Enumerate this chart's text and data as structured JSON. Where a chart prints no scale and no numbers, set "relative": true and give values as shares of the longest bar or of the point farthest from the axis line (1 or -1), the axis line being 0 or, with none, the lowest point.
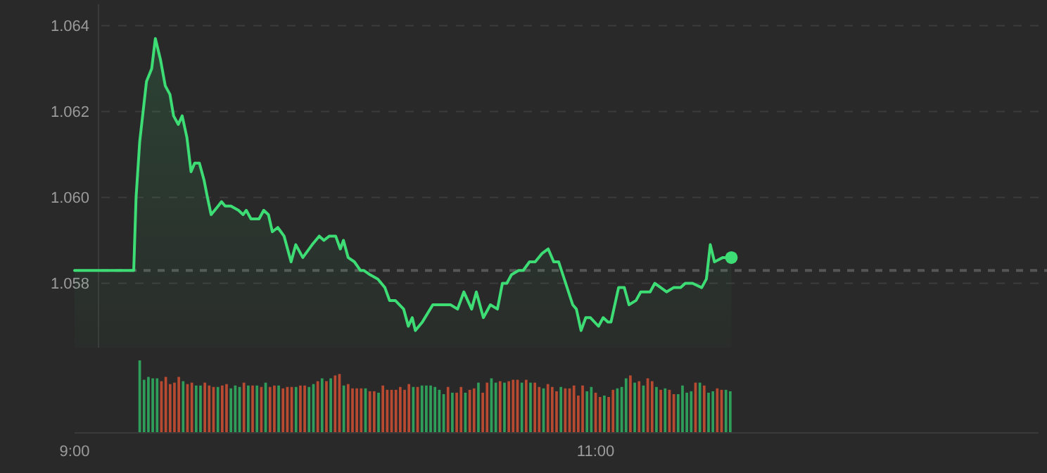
{
  "chart_data": [
    {
      "type": "area",
      "xlim": [
        9,
        12.7
      ],
      "ylim": [
        1.0565,
        1.0645
      ],
      "yticks": [
        {
          "value": 1.058,
          "label": "1.058"
        },
        {
          "value": 1.06,
          "label": "1.060"
        },
        {
          "value": 1.062,
          "label": "1.062"
        },
        {
          "value": 1.064,
          "label": "1.064"
        }
      ],
      "grid": "y",
      "tick_labels": "y",
      "line_style": "solid",
      "ref_lines": [
        {
          "axis": "y",
          "value": 1.0583,
          "color": "#555555",
          "line_style": "dashed"
        }
      ],
      "series": [
        {
          "color": "#3ddc74",
          "x": [
            9,
            9.227,
            9.236,
            9.25,
            9.276,
            9.296,
            9.31,
            9.33,
            9.348,
            9.366,
            9.38,
            9.398,
            9.413,
            9.431,
            9.447,
            9.461,
            9.479,
            9.497,
            9.51,
            9.524,
            9.551,
            9.564,
            9.578,
            9.6,
            9.629,
            9.647,
            9.659,
            9.677,
            9.708,
            9.726,
            9.744,
            9.759,
            9.78,
            9.804,
            9.831,
            9.849,
            9.876,
            9.912,
            9.939,
            9.957,
            9.978,
            10.002,
            10.02,
            10.032,
            10.05,
            10.074,
            10.097,
            10.11,
            10.134,
            10.164,
            10.191,
            10.209,
            10.231,
            10.263,
            10.281,
            10.296,
            10.308,
            10.335,
            10.375,
            10.443,
            10.47,
            10.494,
            10.524,
            10.542,
            10.569,
            10.596,
            10.623,
            10.642,
            10.659,
            10.677,
            10.704,
            10.722,
            10.746,
            10.768,
            10.795,
            10.818,
            10.839,
            10.858,
            10.885,
            10.912,
            10.926,
            10.944,
            10.962,
            10.98,
            11.011,
            11.029,
            11.047,
            11.059,
            11.088,
            11.11,
            11.128,
            11.155,
            11.173,
            11.191,
            11.209,
            11.227,
            11.25,
            11.272,
            11.299,
            11.326,
            11.344,
            11.372,
            11.407,
            11.425,
            11.44,
            11.456,
            11.488,
            11.521
          ],
          "values": [
            1.0583,
            1.0583,
            1.06,
            1.0613,
            1.0627,
            1.063,
            1.0637,
            1.0632,
            1.0626,
            1.0624,
            1.0619,
            1.0617,
            1.0619,
            1.0614,
            1.0606,
            1.0608,
            1.0608,
            1.0604,
            1.06,
            1.0596,
            1.0598,
            1.0599,
            1.0598,
            1.0598,
            1.0597,
            1.0596,
            1.0597,
            1.0595,
            1.0595,
            1.0597,
            1.0596,
            1.0592,
            1.0593,
            1.0591,
            1.0585,
            1.0589,
            1.0586,
            1.0589,
            1.0591,
            1.059,
            1.0591,
            1.0591,
            1.0588,
            1.059,
            1.0586,
            1.0585,
            1.0583,
            1.0583,
            1.0582,
            1.0581,
            1.0579,
            1.0576,
            1.0576,
            1.0574,
            1.057,
            1.0572,
            1.0569,
            1.0571,
            1.0575,
            1.0575,
            1.0574,
            1.0578,
            1.0574,
            1.0578,
            1.0572,
            1.0575,
            1.0574,
            1.058,
            1.058,
            1.0582,
            1.0583,
            1.0583,
            1.0585,
            1.0585,
            1.0587,
            1.0588,
            1.0585,
            1.0585,
            1.058,
            1.0575,
            1.0574,
            1.0569,
            1.0572,
            1.0572,
            1.057,
            1.0572,
            1.0571,
            1.0571,
            1.0579,
            1.0579,
            1.0575,
            1.0576,
            1.0578,
            1.0578,
            1.0578,
            1.058,
            1.0579,
            1.0578,
            1.0579,
            1.0579,
            1.058,
            1.058,
            1.0579,
            1.0581,
            1.0589,
            1.0585,
            1.0586,
            1.0586
          ]
        },
        {
          "type": "scatter",
          "color": "#3ddc74",
          "marker": "circle",
          "x": [
            11.521
          ],
          "values": [
            1.0586
          ]
        }
      ]
    },
    {
      "type": "bar",
      "relative": true,
      "xlim": [
        9,
        12.7
      ],
      "xticks": [
        {
          "value": 9,
          "label": "9:00"
        },
        {
          "value": 11,
          "label": "11:00"
        }
      ],
      "tick_labels": "x",
      "x": [
        9.25,
        9.2667,
        9.2833,
        9.3,
        9.3167,
        9.3333,
        9.35,
        9.3667,
        9.3833,
        9.4,
        9.4167,
        9.4333,
        9.45,
        9.4667,
        9.4833,
        9.5,
        9.5167,
        9.5333,
        9.55,
        9.5667,
        9.5833,
        9.6,
        9.6167,
        9.6333,
        9.65,
        9.6667,
        9.6833,
        9.7,
        9.7167,
        9.7333,
        9.75,
        9.7667,
        9.7833,
        9.8,
        9.8167,
        9.8333,
        9.85,
        9.8667,
        9.8833,
        9.9,
        9.9167,
        9.9333,
        9.95,
        9.9667,
        9.9833,
        10,
        10.0167,
        10.0333,
        10.05,
        10.0667,
        10.0833,
        10.1,
        10.1167,
        10.1333,
        10.15,
        10.1667,
        10.1833,
        10.2,
        10.2167,
        10.2333,
        10.25,
        10.2667,
        10.2833,
        10.3,
        10.3167,
        10.3333,
        10.35,
        10.3667,
        10.3833,
        10.4,
        10.4167,
        10.4333,
        10.45,
        10.4667,
        10.4833,
        10.5,
        10.5167,
        10.5333,
        10.55,
        10.5667,
        10.5833,
        10.6,
        10.6167,
        10.6333,
        10.65,
        10.6667,
        10.6833,
        10.7,
        10.7167,
        10.7333,
        10.75,
        10.7667,
        10.7833,
        10.8,
        10.8167,
        10.8333,
        10.85,
        10.8667,
        10.8833,
        10.9,
        10.9167,
        10.9333,
        10.95,
        10.9667,
        10.9833,
        11,
        11.0167,
        11.0333,
        11.05,
        11.0667,
        11.0833,
        11.1,
        11.1167,
        11.1333,
        11.15,
        11.1667,
        11.1833,
        11.2,
        11.2167,
        11.2333,
        11.25,
        11.2667,
        11.2833,
        11.3,
        11.3167,
        11.3333,
        11.35,
        11.3667,
        11.3833,
        11.4,
        11.4167,
        11.4333,
        11.45,
        11.4667,
        11.4833,
        11.5,
        11.5167
      ],
      "values": [
        1,
        0.73,
        0.77,
        0.75,
        0.75,
        0.71,
        0.77,
        0.67,
        0.69,
        0.77,
        0.71,
        0.67,
        0.69,
        0.65,
        0.65,
        0.69,
        0.65,
        0.63,
        0.63,
        0.65,
        0.67,
        0.61,
        0.65,
        0.63,
        0.69,
        0.65,
        0.65,
        0.65,
        0.63,
        0.69,
        0.63,
        0.65,
        0.65,
        0.61,
        0.63,
        0.63,
        0.63,
        0.65,
        0.65,
        0.63,
        0.67,
        0.71,
        0.75,
        0.71,
        0.75,
        0.79,
        0.81,
        0.65,
        0.67,
        0.61,
        0.61,
        0.61,
        0.61,
        0.57,
        0.57,
        0.55,
        0.65,
        0.59,
        0.59,
        0.59,
        0.63,
        0.59,
        0.67,
        0.63,
        0.63,
        0.65,
        0.65,
        0.65,
        0.63,
        0.59,
        0.53,
        0.63,
        0.55,
        0.55,
        0.63,
        0.55,
        0.59,
        0.61,
        0.69,
        0.55,
        0.69,
        0.75,
        0.69,
        0.71,
        0.69,
        0.71,
        0.73,
        0.73,
        0.69,
        0.73,
        0.69,
        0.69,
        0.63,
        0.61,
        0.67,
        0.63,
        0.57,
        0.63,
        0.61,
        0.61,
        0.65,
        0.51,
        0.65,
        0.57,
        0.63,
        0.55,
        0.49,
        0.51,
        0.49,
        0.59,
        0.61,
        0.63,
        0.75,
        0.79,
        0.69,
        0.71,
        0.65,
        0.75,
        0.71,
        0.63,
        0.59,
        0.61,
        0.59,
        0.53,
        0.53,
        0.65,
        0.55,
        0.57,
        0.69,
        0.69,
        0.65,
        0.55,
        0.57,
        0.61,
        0.59,
        0.59,
        0.57
      ],
      "colors": [
        "#2f9e5a",
        "#2f9e5a",
        "#2f9e5a",
        "#2f9e5a",
        "#2f9e5a",
        "#b84a32",
        "#b84a32",
        "#b84a32",
        "#b84a32",
        "#b84a32",
        "#2f9e5a",
        "#b84a32",
        "#b84a32",
        "#2f9e5a",
        "#2f9e5a",
        "#b84a32",
        "#b84a32",
        "#b84a32",
        "#2f9e5a",
        "#b84a32",
        "#b84a32",
        "#2f9e5a",
        "#2f9e5a",
        "#2f9e5a",
        "#b84a32",
        "#2f9e5a",
        "#b84a32",
        "#2f9e5a",
        "#b84a32",
        "#2f9e5a",
        "#b84a32",
        "#b84a32",
        "#2f9e5a",
        "#b84a32",
        "#b84a32",
        "#b84a32",
        "#2f9e5a",
        "#b84a32",
        "#b84a32",
        "#2f9e5a",
        "#2f9e5a",
        "#b84a32",
        "#2f9e5a",
        "#b84a32",
        "#2f9e5a",
        "#b84a32",
        "#b84a32",
        "#2f9e5a",
        "#b84a32",
        "#b84a32",
        "#b84a32",
        "#b84a32",
        "#2f9e5a",
        "#b84a32",
        "#b84a32",
        "#2f9e5a",
        "#b84a32",
        "#b84a32",
        "#b84a32",
        "#b84a32",
        "#b84a32",
        "#b84a32",
        "#b84a32",
        "#2f9e5a",
        "#b84a32",
        "#2f9e5a",
        "#2f9e5a",
        "#2f9e5a",
        "#2f9e5a",
        "#2f9e5a",
        "#2f9e5a",
        "#b84a32",
        "#2f9e5a",
        "#b84a32",
        "#b84a32",
        "#2f9e5a",
        "#b84a32",
        "#b84a32",
        "#2f9e5a",
        "#b84a32",
        "#b84a32",
        "#2f9e5a",
        "#2f9e5a",
        "#b84a32",
        "#2f9e5a",
        "#b84a32",
        "#b84a32",
        "#b84a32",
        "#2f9e5a",
        "#b84a32",
        "#2f9e5a",
        "#b84a32",
        "#b84a32",
        "#2f9e5a",
        "#b84a32",
        "#b84a32",
        "#b84a32",
        "#2f9e5a",
        "#b84a32",
        "#b84a32",
        "#b84a32",
        "#b84a32",
        "#b84a32",
        "#2f9e5a",
        "#2f9e5a",
        "#b84a32",
        "#b84a32",
        "#2f9e5a",
        "#b84a32",
        "#b84a32",
        "#2f9e5a",
        "#2f9e5a",
        "#2f9e5a",
        "#b84a32",
        "#2f9e5a",
        "#b84a32",
        "#2f9e5a",
        "#b84a32",
        "#b84a32",
        "#2f9e5a",
        "#b84a32",
        "#2f9e5a",
        "#b84a32",
        "#b84a32",
        "#2f9e5a",
        "#2f9e5a",
        "#2f9e5a",
        "#2f9e5a",
        "#b84a32",
        "#2f9e5a",
        "#b84a32",
        "#2f9e5a",
        "#2f9e5a",
        "#b84a32",
        "#b84a32",
        "#2f9e5a",
        "#2f9e5a"
      ]
    }
  ]
}
